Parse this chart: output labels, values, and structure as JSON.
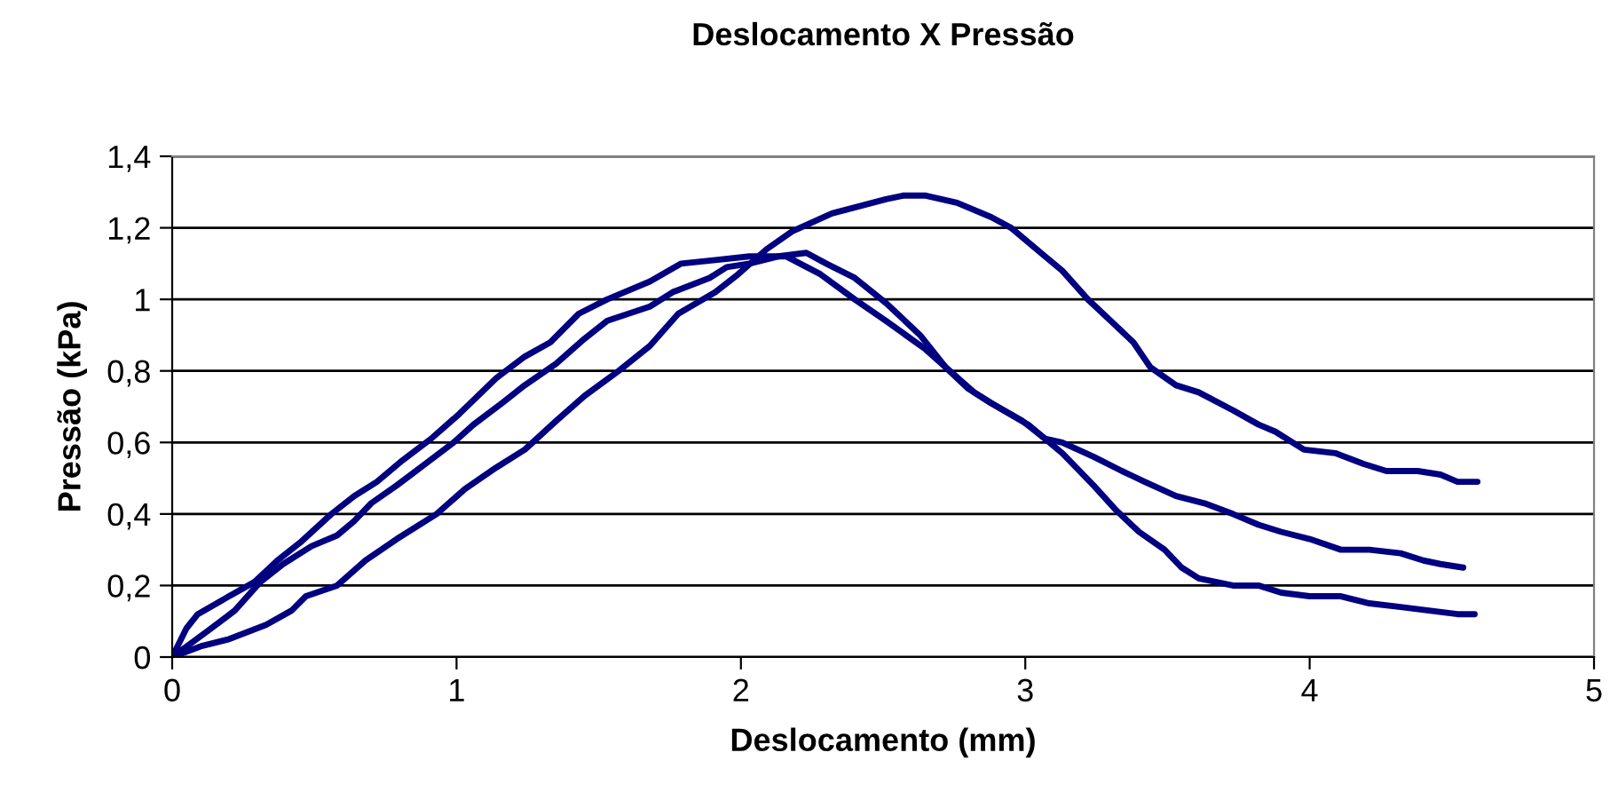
{
  "chart_data": {
    "type": "line",
    "title": "Deslocamento X Pressão",
    "xlabel": "Deslocamento (mm)",
    "ylabel": "Pressão (kPa)",
    "xlim": [
      0,
      5
    ],
    "xticks": [
      0,
      1,
      2,
      3,
      4,
      5
    ],
    "ylim": [
      0,
      1.4
    ],
    "yticks": [
      {
        "value": 0,
        "label": "0"
      },
      {
        "value": 0.2,
        "label": "0,2"
      },
      {
        "value": 0.4,
        "label": "0,4"
      },
      {
        "value": 0.6,
        "label": "0,6"
      },
      {
        "value": 0.8,
        "label": "0,8"
      },
      {
        "value": 1,
        "label": "1"
      },
      {
        "value": 1.2,
        "label": "1,2"
      },
      {
        "value": 1.4,
        "label": "1,4"
      }
    ],
    "grid": "y",
    "legend": false,
    "marker": "none",
    "line_style": "solid",
    "series": [
      {
        "color": "#000080",
        "x": [
          0,
          0.05,
          0.09,
          0.2,
          0.29,
          0.37,
          0.45,
          0.56,
          0.64,
          0.72,
          0.81,
          0.91,
          1.01,
          1.14,
          1.24,
          1.33,
          1.43,
          1.53,
          1.68,
          1.79,
          1.91,
          2.03,
          2.16,
          2.28,
          2.4,
          2.51,
          2.65,
          2.72,
          2.82,
          2.88,
          3.01,
          3.13,
          3.24,
          3.32,
          3.4,
          3.49,
          3.55,
          3.61,
          3.73,
          3.82,
          3.9,
          4.0,
          4.11,
          4.21,
          4.32,
          4.42,
          4.52,
          4.58
        ],
        "values": [
          0,
          0.08,
          0.12,
          0.17,
          0.21,
          0.27,
          0.32,
          0.4,
          0.45,
          0.49,
          0.55,
          0.61,
          0.68,
          0.78,
          0.84,
          0.88,
          0.96,
          1.0,
          1.05,
          1.1,
          1.11,
          1.12,
          1.12,
          1.07,
          1.0,
          0.94,
          0.86,
          0.81,
          0.74,
          0.71,
          0.65,
          0.57,
          0.48,
          0.41,
          0.35,
          0.3,
          0.25,
          0.22,
          0.2,
          0.2,
          0.18,
          0.17,
          0.17,
          0.15,
          0.14,
          0.13,
          0.12,
          0.12
        ]
      },
      {
        "color": "#000080",
        "x": [
          0,
          0.12,
          0.22,
          0.31,
          0.39,
          0.49,
          0.58,
          0.64,
          0.7,
          0.79,
          0.89,
          0.99,
          1.06,
          1.16,
          1.24,
          1.35,
          1.45,
          1.53,
          1.68,
          1.76,
          1.89,
          1.95,
          2.03,
          2.13,
          2.23,
          2.3,
          2.4,
          2.51,
          2.63,
          2.72,
          2.8,
          2.88,
          2.99,
          3.07,
          3.13,
          3.24,
          3.34,
          3.42,
          3.53,
          3.63,
          3.73,
          3.82,
          3.9,
          4.0,
          4.11,
          4.21,
          4.32,
          4.4,
          4.46,
          4.54
        ],
        "values": [
          0,
          0.07,
          0.13,
          0.21,
          0.26,
          0.31,
          0.34,
          0.38,
          0.43,
          0.48,
          0.54,
          0.6,
          0.65,
          0.71,
          0.76,
          0.82,
          0.89,
          0.94,
          0.98,
          1.02,
          1.06,
          1.09,
          1.1,
          1.12,
          1.13,
          1.1,
          1.06,
          0.99,
          0.9,
          0.81,
          0.75,
          0.71,
          0.66,
          0.61,
          0.6,
          0.56,
          0.52,
          0.49,
          0.45,
          0.43,
          0.4,
          0.37,
          0.35,
          0.33,
          0.3,
          0.3,
          0.29,
          0.27,
          0.26,
          0.25
        ]
      },
      {
        "color": "#000080",
        "x": [
          0,
          0.1,
          0.2,
          0.33,
          0.42,
          0.47,
          0.58,
          0.68,
          0.79,
          0.93,
          1.03,
          1.14,
          1.24,
          1.35,
          1.45,
          1.57,
          1.68,
          1.78,
          1.91,
          1.99,
          2.09,
          2.18,
          2.32,
          2.51,
          2.57,
          2.65,
          2.76,
          2.88,
          2.95,
          3.07,
          3.13,
          3.22,
          3.3,
          3.38,
          3.44,
          3.53,
          3.61,
          3.73,
          3.82,
          3.88,
          3.98,
          4.09,
          4.19,
          4.27,
          4.38,
          4.46,
          4.52,
          4.59
        ],
        "values": [
          0,
          0.03,
          0.05,
          0.09,
          0.13,
          0.17,
          0.2,
          0.27,
          0.33,
          0.4,
          0.47,
          0.53,
          0.58,
          0.66,
          0.73,
          0.8,
          0.87,
          0.96,
          1.02,
          1.07,
          1.14,
          1.19,
          1.24,
          1.28,
          1.29,
          1.29,
          1.27,
          1.23,
          1.2,
          1.12,
          1.08,
          1.0,
          0.94,
          0.88,
          0.81,
          0.76,
          0.74,
          0.69,
          0.65,
          0.63,
          0.58,
          0.57,
          0.54,
          0.52,
          0.52,
          0.51,
          0.49,
          0.49
        ]
      }
    ]
  }
}
